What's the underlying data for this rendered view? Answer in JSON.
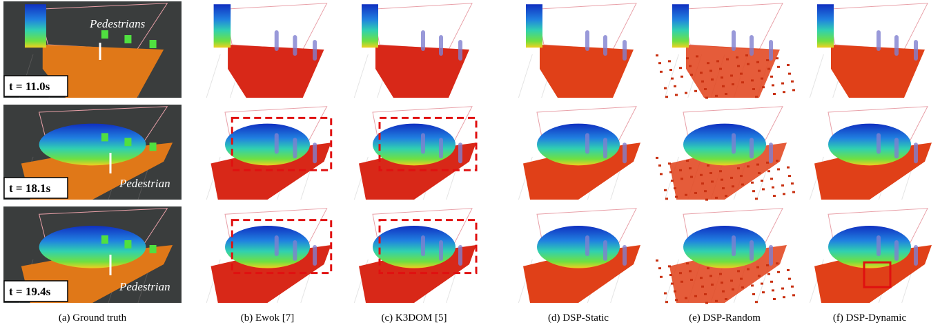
{
  "captions": [
    "(a) Ground truth",
    "(b) Ewok [7]",
    "(c) K3DOM [5]",
    "(d) DSP-Static",
    "(e) DSP-Random",
    "(f) DSP-Dynamic"
  ],
  "ground_truth": {
    "rows": [
      {
        "time": "t = 11.0s",
        "annotation": "Pedestrians"
      },
      {
        "time": "t = 18.1s",
        "annotation": "Pedestrian"
      },
      {
        "time": "t = 19.4s",
        "annotation": "Pedestrian"
      }
    ]
  }
}
